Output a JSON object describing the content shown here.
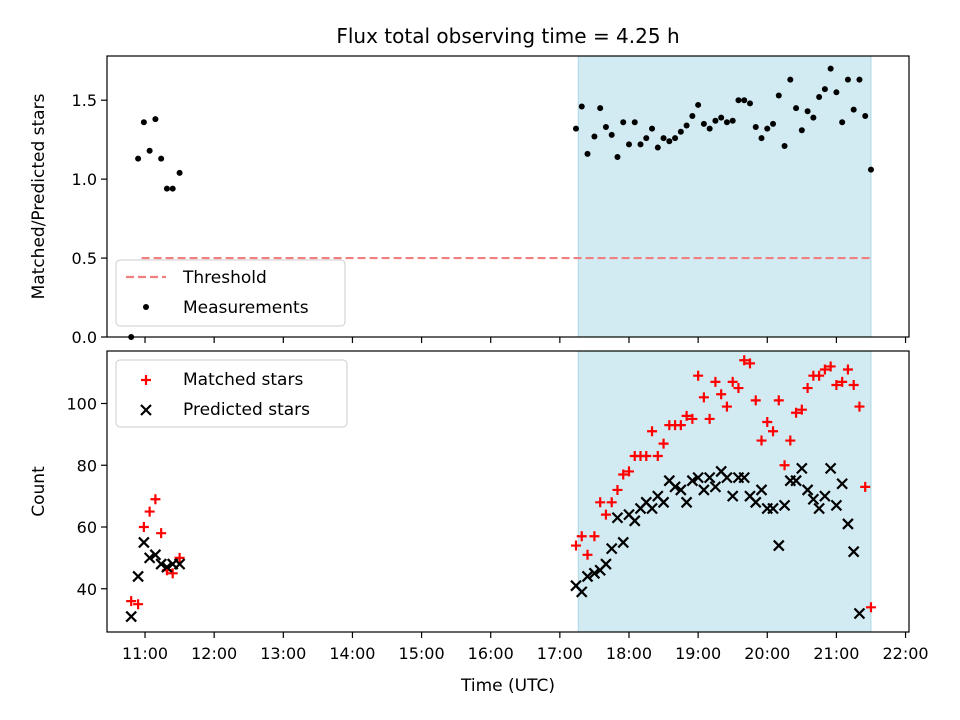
{
  "title": "Flux total observing time = 4.25 h",
  "chart_data": [
    {
      "type": "scatter",
      "panel": "top",
      "ylabel": "Matched/Predicted stars",
      "xlabel": "",
      "xlim": [
        "10:27",
        "22:03"
      ],
      "ylim": [
        0,
        1.78
      ],
      "yticks": [
        0.0,
        0.5,
        1.0,
        1.5
      ],
      "yticklabels": [
        "0.0",
        "0.5",
        "1.0",
        "1.5"
      ],
      "shaded_region": {
        "start": "17:16",
        "end": "21:30",
        "color": "#add8e6"
      },
      "threshold": {
        "name": "Threshold",
        "value": 0.5,
        "x_start": "10:57",
        "x_end": "21:30",
        "color": "#f08080",
        "style": "dashed"
      },
      "legend": {
        "placement": "lower-left",
        "entries": [
          "Threshold",
          "Measurements"
        ]
      },
      "series": [
        {
          "name": "Measurements",
          "marker": "dot",
          "color": "#000000",
          "x": [
            "10:48",
            "10:54",
            "10:59",
            "11:04",
            "11:09",
            "11:14",
            "11:19",
            "11:24",
            "11:30",
            "11:35",
            "17:14",
            "17:19",
            "17:24",
            "17:30",
            "17:35",
            "17:40",
            "17:45",
            "17:50",
            "17:55",
            "18:00",
            "18:05",
            "18:10",
            "18:15",
            "18:20",
            "18:25",
            "18:30",
            "18:35",
            "18:40",
            "18:45",
            "18:50",
            "18:55",
            "19:00",
            "19:05",
            "19:10",
            "19:15",
            "19:20",
            "19:25",
            "19:30",
            "19:35",
            "19:40",
            "19:45",
            "19:50",
            "19:55",
            "20:00",
            "20:05",
            "20:10",
            "20:15",
            "20:20",
            "20:25",
            "20:30",
            "20:35",
            "20:40",
            "20:45",
            "20:50",
            "20:55",
            "21:00",
            "21:05",
            "21:10",
            "21:15",
            "21:20",
            "21:25",
            "21:30"
          ],
          "y": [
            0.0,
            1.13,
            1.36,
            1.18,
            1.38,
            1.13,
            0.94,
            0.94,
            1.04,
            null,
            1.32,
            1.46,
            1.16,
            1.27,
            1.45,
            1.33,
            1.28,
            1.14,
            1.36,
            1.22,
            1.36,
            1.22,
            1.26,
            1.32,
            1.2,
            1.26,
            1.24,
            1.26,
            1.3,
            1.34,
            1.4,
            1.47,
            1.35,
            1.32,
            1.37,
            1.39,
            1.36,
            1.37,
            1.5,
            1.5,
            1.48,
            1.33,
            1.26,
            1.32,
            1.35,
            1.53,
            1.21,
            1.63,
            1.45,
            1.31,
            1.43,
            1.39,
            1.52,
            1.57,
            1.7,
            1.55,
            1.36,
            1.63,
            1.44,
            1.63,
            1.4,
            1.06
          ]
        }
      ]
    },
    {
      "type": "scatter",
      "panel": "bottom",
      "ylabel": "Count",
      "xlabel": "Time (UTC)",
      "xlim": [
        "10:27",
        "22:03"
      ],
      "ylim": [
        26,
        117
      ],
      "yticks": [
        40,
        60,
        80,
        100
      ],
      "yticklabels": [
        "40",
        "60",
        "80",
        "100"
      ],
      "xticks": [
        "11:00",
        "12:00",
        "13:00",
        "14:00",
        "15:00",
        "16:00",
        "17:00",
        "18:00",
        "19:00",
        "20:00",
        "21:00",
        "22:00"
      ],
      "xticklabels": [
        "11:00",
        "12:00",
        "13:00",
        "14:00",
        "15:00",
        "16:00",
        "17:00",
        "18:00",
        "19:00",
        "20:00",
        "21:00",
        "22:00"
      ],
      "shaded_region": {
        "start": "17:16",
        "end": "21:30",
        "color": "#add8e6"
      },
      "legend": {
        "placement": "upper-left",
        "entries": [
          "Matched stars",
          "Predicted stars"
        ]
      },
      "series": [
        {
          "name": "Matched stars",
          "marker": "plus",
          "color": "#ff0000",
          "x": [
            "10:48",
            "10:54",
            "10:59",
            "11:04",
            "11:09",
            "11:14",
            "11:19",
            "11:24",
            "11:30",
            "11:35",
            "17:14",
            "17:19",
            "17:24",
            "17:30",
            "17:35",
            "17:40",
            "17:45",
            "17:50",
            "17:55",
            "18:00",
            "18:05",
            "18:10",
            "18:15",
            "18:20",
            "18:25",
            "18:30",
            "18:35",
            "18:40",
            "18:45",
            "18:50",
            "18:55",
            "19:00",
            "19:05",
            "19:10",
            "19:15",
            "19:20",
            "19:25",
            "19:30",
            "19:35",
            "19:40",
            "19:45",
            "19:50",
            "19:55",
            "20:00",
            "20:05",
            "20:10",
            "20:15",
            "20:20",
            "20:25",
            "20:30",
            "20:35",
            "20:40",
            "20:45",
            "20:50",
            "20:55",
            "21:00",
            "21:05",
            "21:10",
            "21:15",
            "21:20",
            "21:25",
            "21:30"
          ],
          "y": [
            36,
            35,
            60,
            65,
            69,
            58,
            46,
            45,
            50,
            null,
            54,
            57,
            51,
            57,
            68,
            64,
            68,
            72,
            77,
            78,
            83,
            83,
            83,
            91,
            83,
            87,
            93,
            93,
            93,
            96,
            95,
            109,
            102,
            95,
            107,
            103,
            99,
            107,
            105,
            114,
            113,
            101,
            88,
            94,
            91,
            101,
            80,
            88,
            97,
            98,
            105,
            109,
            109,
            111,
            112,
            106,
            107,
            111,
            106,
            99,
            73,
            34
          ]
        },
        {
          "name": "Predicted stars",
          "marker": "x",
          "color": "#000000",
          "x": [
            "10:48",
            "10:54",
            "10:59",
            "11:04",
            "11:09",
            "11:14",
            "11:19",
            "11:24",
            "11:30",
            "11:35",
            "17:14",
            "17:19",
            "17:24",
            "17:30",
            "17:35",
            "17:40",
            "17:45",
            "17:50",
            "17:55",
            "18:00",
            "18:05",
            "18:10",
            "18:15",
            "18:20",
            "18:25",
            "18:30",
            "18:35",
            "18:40",
            "18:45",
            "18:50",
            "18:55",
            "19:00",
            "19:05",
            "19:10",
            "19:15",
            "19:20",
            "19:25",
            "19:30",
            "19:35",
            "19:40",
            "19:45",
            "19:50",
            "19:55",
            "20:00",
            "20:05",
            "20:10",
            "20:15",
            "20:20",
            "20:25",
            "20:30",
            "20:35",
            "20:40",
            "20:45",
            "20:50",
            "20:55",
            "21:00",
            "21:05",
            "21:10",
            "21:15",
            "21:20",
            "21:25",
            "21:30"
          ],
          "y": [
            31,
            44,
            55,
            50,
            51,
            48,
            47,
            48,
            48,
            null,
            41,
            39,
            44,
            45,
            46,
            48,
            53,
            63,
            55,
            64,
            62,
            66,
            68,
            66,
            70,
            68,
            75,
            73,
            72,
            68,
            75,
            76,
            72,
            76,
            73,
            78,
            76,
            70,
            76,
            76,
            70,
            68,
            72,
            66,
            66,
            54,
            67,
            75,
            75,
            79,
            72,
            69,
            66,
            70,
            79,
            67,
            74,
            61,
            52,
            32,
            null,
            null
          ]
        }
      ]
    }
  ]
}
